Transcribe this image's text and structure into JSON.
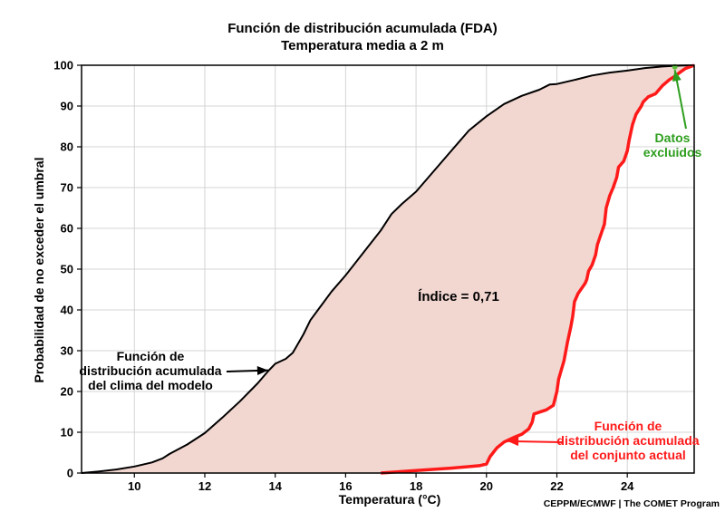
{
  "chart_data": {
    "type": "line",
    "title": "Función de distribución acumulada (FDA)",
    "subtitle": "Temperatura media a 2 m",
    "xlabel": "Temperatura (°C)",
    "ylabel": "Probabilidad de no exceder el umbral",
    "xlim": [
      8.5,
      25.9
    ],
    "ylim": [
      0,
      100
    ],
    "x_ticks": [
      10,
      12,
      14,
      16,
      18,
      20,
      22,
      24
    ],
    "y_ticks": [
      0,
      10,
      20,
      30,
      40,
      50,
      60,
      70,
      80,
      90,
      100
    ],
    "grid": true,
    "fill_color": "#f2d6d0",
    "series": [
      {
        "key": "model_climate",
        "color": "#000000",
        "points": [
          [
            8.5,
            0
          ],
          [
            9.0,
            0.4
          ],
          [
            9.5,
            0.9
          ],
          [
            10.0,
            1.6
          ],
          [
            10.5,
            2.6
          ],
          [
            10.8,
            3.6
          ],
          [
            11.0,
            4.7
          ],
          [
            11.5,
            7.0
          ],
          [
            12.0,
            9.8
          ],
          [
            12.5,
            13.6
          ],
          [
            13.0,
            17.6
          ],
          [
            13.5,
            22.0
          ],
          [
            13.8,
            25.0
          ],
          [
            14.0,
            26.8
          ],
          [
            14.3,
            28.0
          ],
          [
            14.5,
            29.5
          ],
          [
            14.8,
            34.0
          ],
          [
            15.0,
            37.5
          ],
          [
            15.3,
            41.0
          ],
          [
            15.6,
            44.5
          ],
          [
            16.0,
            48.5
          ],
          [
            16.5,
            54.0
          ],
          [
            17.0,
            59.5
          ],
          [
            17.3,
            63.5
          ],
          [
            17.6,
            66.0
          ],
          [
            18.0,
            69.0
          ],
          [
            18.5,
            74.0
          ],
          [
            19.0,
            79.0
          ],
          [
            19.5,
            84.0
          ],
          [
            20.0,
            87.5
          ],
          [
            20.5,
            90.5
          ],
          [
            21.0,
            92.5
          ],
          [
            21.5,
            94.0
          ],
          [
            21.8,
            95.3
          ],
          [
            22.0,
            95.4
          ],
          [
            22.5,
            96.4
          ],
          [
            23.0,
            97.5
          ],
          [
            23.5,
            98.2
          ],
          [
            24.0,
            98.7
          ],
          [
            24.5,
            99.3
          ],
          [
            25.0,
            99.7
          ],
          [
            25.5,
            99.9
          ],
          [
            25.9,
            100
          ]
        ]
      },
      {
        "key": "ensemble",
        "color": "#ff1a1a",
        "points": [
          [
            17.0,
            0
          ],
          [
            18.0,
            0.6
          ],
          [
            19.0,
            1.2
          ],
          [
            19.8,
            1.8
          ],
          [
            20.0,
            2.2
          ],
          [
            20.1,
            4.0
          ],
          [
            20.3,
            6.2
          ],
          [
            20.5,
            7.6
          ],
          [
            20.8,
            8.8
          ],
          [
            21.0,
            9.5
          ],
          [
            21.2,
            10.8
          ],
          [
            21.3,
            12.5
          ],
          [
            21.35,
            14.5
          ],
          [
            21.7,
            15.5
          ],
          [
            21.9,
            16.6
          ],
          [
            22.0,
            20.0
          ],
          [
            22.05,
            23.0
          ],
          [
            22.2,
            27.5
          ],
          [
            22.3,
            32.0
          ],
          [
            22.4,
            36.0
          ],
          [
            22.45,
            38.5
          ],
          [
            22.5,
            42.0
          ],
          [
            22.6,
            44.0
          ],
          [
            22.8,
            46.5
          ],
          [
            22.85,
            47.5
          ],
          [
            22.9,
            49.5
          ],
          [
            23.0,
            51.0
          ],
          [
            23.1,
            53.5
          ],
          [
            23.15,
            56.0
          ],
          [
            23.25,
            58.5
          ],
          [
            23.35,
            61.0
          ],
          [
            23.4,
            65.0
          ],
          [
            23.5,
            68.0
          ],
          [
            23.6,
            70.0
          ],
          [
            23.7,
            72.5
          ],
          [
            23.75,
            75.0
          ],
          [
            23.9,
            76.5
          ],
          [
            24.0,
            79.0
          ],
          [
            24.05,
            81.5
          ],
          [
            24.15,
            85.5
          ],
          [
            24.25,
            88.0
          ],
          [
            24.4,
            90.0
          ],
          [
            24.45,
            91.0
          ],
          [
            24.6,
            92.3
          ],
          [
            24.8,
            93.0
          ],
          [
            25.0,
            95.0
          ],
          [
            25.2,
            96.5
          ],
          [
            25.35,
            97.3
          ],
          [
            25.5,
            98.3
          ],
          [
            25.65,
            99.2
          ],
          [
            25.9,
            100
          ]
        ]
      }
    ],
    "excluded_marker": {
      "x": 25.35,
      "y": 99.6,
      "color": "#5bbf3a"
    },
    "index_text": "Índice = 0,71",
    "annotations": {
      "model": {
        "lines": [
          "Función de",
          "distribución acumulada",
          "del clima del modelo"
        ],
        "color": "#000000",
        "target": [
          13.8,
          25.2
        ]
      },
      "ensemble": {
        "lines": [
          "Función de",
          "distribución acumulada",
          "del conjunto actual"
        ],
        "color": "#ff1a1a",
        "target": [
          20.6,
          7.8
        ]
      },
      "excluded": {
        "lines": [
          "Datos",
          "excluidos"
        ],
        "color": "#2e9e1e",
        "target": [
          25.35,
          99.5
        ]
      }
    },
    "credit": "CEPPM/ECMWF | The COMET Program"
  }
}
